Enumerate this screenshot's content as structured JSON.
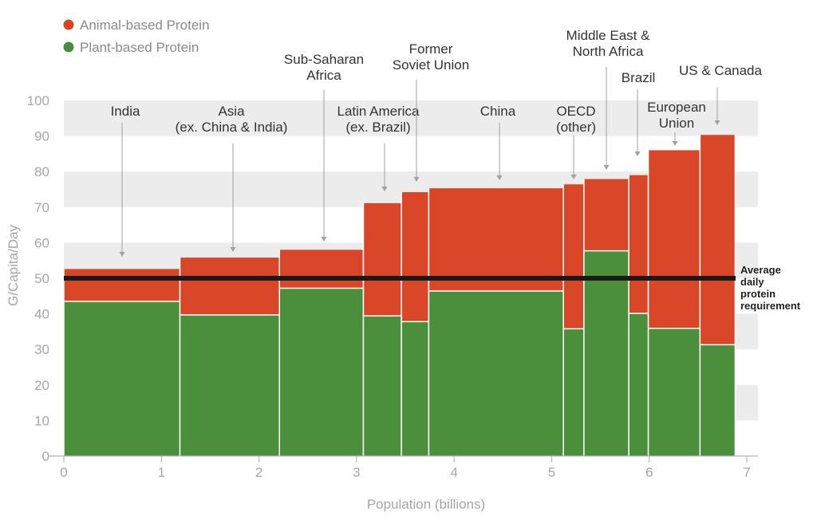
{
  "chart_data": {
    "type": "bar",
    "subtype": "variable-width stacked bar (marimekko)",
    "xlabel": "Population (billions)",
    "ylabel": "G/Capita/Day",
    "xlim": [
      0,
      7
    ],
    "ylim": [
      0,
      100
    ],
    "x_ticks": [
      "0",
      "1",
      "2",
      "3",
      "4",
      "5",
      "6",
      "7"
    ],
    "y_ticks": [
      "0",
      "10",
      "20",
      "30",
      "40",
      "50",
      "60",
      "70",
      "80",
      "90",
      "100"
    ],
    "grid": "alternating horizontal bands",
    "legend": {
      "position": "top-left",
      "items": [
        {
          "label": "Animal-based Protein",
          "color": "#d84527"
        },
        {
          "label": "Plant-based Protein",
          "color": "#4b8f3d"
        }
      ]
    },
    "series": [
      {
        "name": "Plant-based Protein",
        "color": "#4b8f3d"
      },
      {
        "name": "Animal-based Protein",
        "color": "#d84527"
      }
    ],
    "regions": [
      {
        "label": [
          "India"
        ],
        "x_start": 0.0,
        "x_end": 1.19,
        "plant": 43.5,
        "total": 52.6
      },
      {
        "label": [
          "Asia",
          "(ex. China & India)"
        ],
        "x_start": 1.19,
        "x_end": 2.21,
        "plant": 39.7,
        "total": 55.8
      },
      {
        "label": [
          "Sub-Saharan",
          "Africa"
        ],
        "x_start": 2.21,
        "x_end": 3.07,
        "plant": 47.2,
        "total": 58.0
      },
      {
        "label": [
          "Latin America",
          "(ex. Brazil)"
        ],
        "x_start": 3.07,
        "x_end": 3.46,
        "plant": 39.4,
        "total": 71.1
      },
      {
        "label": [
          "Former",
          "Soviet Union"
        ],
        "x_start": 3.46,
        "x_end": 3.74,
        "plant": 37.8,
        "total": 74.2
      },
      {
        "label": [
          "China"
        ],
        "x_start": 3.74,
        "x_end": 5.12,
        "plant": 46.4,
        "total": 75.3
      },
      {
        "label": [
          "OECD",
          "(other)"
        ],
        "x_start": 5.12,
        "x_end": 5.33,
        "plant": 35.8,
        "total": 76.4
      },
      {
        "label": [
          "Middle East &",
          "North Africa"
        ],
        "x_start": 5.33,
        "x_end": 5.79,
        "plant": 57.7,
        "total": 77.9
      },
      {
        "label": [
          "Brazil"
        ],
        "x_start": 5.79,
        "x_end": 5.99,
        "plant": 40.1,
        "total": 79.0
      },
      {
        "label": [
          "European",
          "Union"
        ],
        "x_start": 5.99,
        "x_end": 6.52,
        "plant": 35.9,
        "total": 86.0
      },
      {
        "label": [
          "US & Canada"
        ],
        "x_start": 6.52,
        "x_end": 6.88,
        "plant": 31.3,
        "total": 90.3
      }
    ],
    "reference_line": {
      "value": 50,
      "label": [
        "Average",
        "daily",
        "protein",
        "requirement"
      ]
    }
  }
}
